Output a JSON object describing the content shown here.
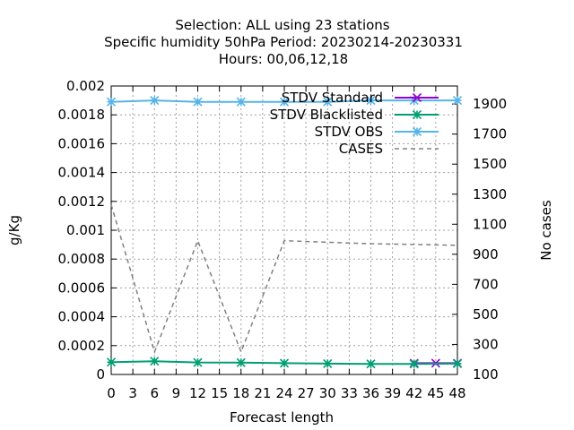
{
  "chart_data": {
    "type": "line",
    "title_lines": [
      "Selection: ALL using    23 stations",
      "Specific humidity 50hPa   Period: 20230214-20230331",
      "Hours:  00,06,12,18"
    ],
    "xlabel": "Forecast length",
    "ylabel": "g/Kg",
    "y2label": "No cases",
    "xlim": [
      0,
      48
    ],
    "ylim": [
      0,
      0.002
    ],
    "y2lim": [
      100,
      2020
    ],
    "grid": true,
    "legend_position": "top-right",
    "x_ticks": [
      "0",
      "3",
      "6",
      "9",
      "12",
      "15",
      "18",
      "21",
      "24",
      "27",
      "30",
      "33",
      "36",
      "39",
      "42",
      "45",
      "48"
    ],
    "y_ticks": [
      "0",
      "0.0002",
      "0.0004",
      "0.0006",
      "0.0008",
      "0.001",
      "0.0012",
      "0.0014",
      "0.0016",
      "0.0018",
      "0.002"
    ],
    "y2_ticks": [
      "100",
      "300",
      "500",
      "700",
      "900",
      "1100",
      "1300",
      "1500",
      "1700",
      "1900"
    ],
    "series": [
      {
        "name": "STDV Standard",
        "color": "#9400d3",
        "axis": "y",
        "marker": "x",
        "dashed": false,
        "x": [
          42,
          45,
          48
        ],
        "y": [
          7.8e-05,
          7.8e-05,
          7.8e-05
        ]
      },
      {
        "name": "STDV Blacklisted",
        "color": "#009e73",
        "axis": "y",
        "marker": "star",
        "dashed": false,
        "x": [
          0,
          6,
          12,
          18,
          24,
          30,
          36,
          42,
          48
        ],
        "y": [
          8.5e-05,
          9.2e-05,
          8.3e-05,
          8.2e-05,
          7.8e-05,
          7.5e-05,
          7.3e-05,
          7.3e-05,
          7.5e-05
        ]
      },
      {
        "name": "STDV OBS",
        "color": "#56b4e9",
        "axis": "y",
        "marker": "star",
        "dashed": false,
        "x": [
          0,
          6,
          12,
          18,
          24,
          30,
          36,
          42,
          48
        ],
        "y": [
          0.00189,
          0.0019,
          0.00189,
          0.00189,
          0.00189,
          0.00189,
          0.0019,
          0.0019,
          0.0019
        ]
      },
      {
        "name": "CASES",
        "color": "#808080",
        "axis": "y2",
        "marker": "none",
        "dashed": true,
        "x": [
          0,
          6,
          12,
          18,
          24,
          30,
          36,
          42,
          48
        ],
        "y": [
          1230,
          250,
          990,
          250,
          990,
          980,
          970,
          965,
          960
        ]
      }
    ]
  }
}
